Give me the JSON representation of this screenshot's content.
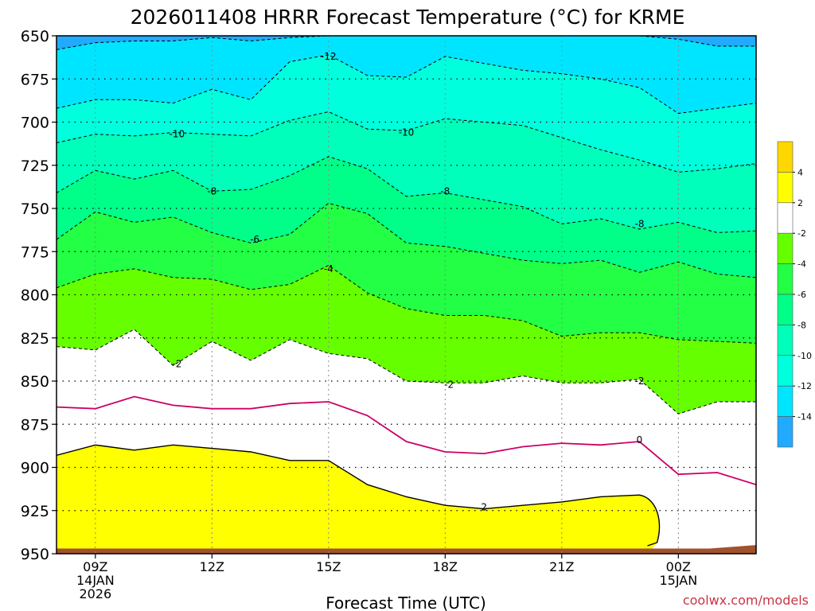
{
  "chart_data": {
    "type": "heatmap",
    "title": "2026011408 HRRR Forecast Temperature (°C) for KRME",
    "xlabel": "Forecast Time (UTC)",
    "credit": "coolwx.com/models",
    "y_ticks": [
      "650",
      "675",
      "700",
      "725",
      "750",
      "775",
      "800",
      "825",
      "850",
      "875",
      "900",
      "925",
      "950"
    ],
    "y_values": [
      650,
      675,
      700,
      725,
      750,
      775,
      800,
      825,
      850,
      875,
      900,
      925,
      950
    ],
    "ylim": [
      650,
      950
    ],
    "y_inverted": true,
    "x_ticks": [
      {
        "hour": 9,
        "lines": [
          "09Z",
          "14JAN",
          "2026"
        ]
      },
      {
        "hour": 12,
        "lines": [
          "12Z"
        ]
      },
      {
        "hour": 15,
        "lines": [
          "15Z"
        ]
      },
      {
        "hour": 18,
        "lines": [
          "18Z"
        ]
      },
      {
        "hour": 21,
        "lines": [
          "21Z"
        ]
      },
      {
        "hour": 24,
        "lines": [
          "00Z",
          "15JAN"
        ]
      }
    ],
    "xlim": [
      8,
      26
    ],
    "grid": true,
    "colorbar": {
      "labels": [
        "4",
        "2",
        "-2",
        "-4",
        "-6",
        "-8",
        "-10",
        "-12",
        "-14"
      ],
      "colors": [
        "#ffd700",
        "#ffff00",
        "#ffffff",
        "#66ff00",
        "#22ff44",
        "#00ff88",
        "#00ffbb",
        "#00ffdd",
        "#00e5ff",
        "#22aaff"
      ]
    },
    "band_colors": {
      "lt_-14": "#22aaff",
      "-14_-12": "#00e5ff",
      "-12_-10": "#00ffdd",
      "-10_-8": "#00ffbb",
      "-8_-6": "#00ff88",
      "-6_-4": "#22ff44",
      "-4_-2": "#66ff00",
      "-2_2": "#ffffff",
      "2_4": "#ffff00",
      "ground": "#a0522d",
      "zero_line": "#cc0066"
    },
    "forecast_hours": [
      8,
      9,
      10,
      11,
      12,
      13,
      14,
      15,
      16,
      17,
      18,
      19,
      20,
      21,
      22,
      23,
      24,
      25,
      26
    ],
    "contours": [
      {
        "level": -14,
        "pressures": [
          658,
          654,
          653,
          653,
          651,
          653,
          651,
          650,
          650,
          650,
          650,
          650,
          650,
          650,
          650,
          650,
          652,
          656,
          656
        ]
      },
      {
        "level": -12,
        "pressures": [
          692,
          687,
          687,
          689,
          681,
          687,
          665,
          661,
          673,
          674,
          662,
          666,
          670,
          672,
          675,
          680,
          695,
          692,
          689
        ]
      },
      {
        "level": -10,
        "pressures": [
          712,
          707,
          708,
          706,
          707,
          708,
          699,
          694,
          704,
          705,
          698,
          700,
          702,
          709,
          716,
          722,
          729,
          727,
          724
        ]
      },
      {
        "level": -8,
        "pressures": [
          741,
          728,
          733,
          728,
          740,
          739,
          731,
          720,
          727,
          743,
          741,
          745,
          749,
          759,
          756,
          762,
          758,
          764,
          763
        ]
      },
      {
        "level": -6,
        "pressures": [
          768,
          752,
          758,
          755,
          764,
          770,
          765,
          747,
          753,
          770,
          772,
          776,
          780,
          782,
          780,
          787,
          781,
          788,
          790
        ]
      },
      {
        "level": -4,
        "pressures": [
          796,
          788,
          785,
          790,
          791,
          797,
          794,
          783,
          799,
          808,
          812,
          812,
          815,
          824,
          822,
          822,
          826,
          827,
          828
        ]
      },
      {
        "level": -2,
        "pressures": [
          830,
          832,
          820,
          841,
          827,
          838,
          826,
          834,
          837,
          850,
          851,
          851,
          847,
          851,
          851,
          849,
          869,
          862,
          862
        ]
      },
      {
        "level": 0,
        "pressures": [
          865,
          866,
          859,
          864,
          866,
          866,
          863,
          862,
          870,
          885,
          891,
          892,
          888,
          886,
          887,
          885,
          904,
          903,
          910
        ]
      },
      {
        "level": 2,
        "pressures": [
          893,
          887,
          890,
          887,
          889,
          891,
          896,
          896,
          910,
          917,
          922,
          924,
          922,
          920,
          917,
          916
        ]
      }
    ],
    "contour_labels": [
      {
        "text": "-12",
        "hour": 15.0,
        "p": 662
      },
      {
        "text": "-10",
        "hour": 11.1,
        "p": 707
      },
      {
        "text": "-10",
        "hour": 17.0,
        "p": 706
      },
      {
        "text": "-8",
        "hour": 12.0,
        "p": 740
      },
      {
        "text": "-8",
        "hour": 18.0,
        "p": 740
      },
      {
        "text": "-8",
        "hour": 23.0,
        "p": 759
      },
      {
        "text": "-6",
        "hour": 13.1,
        "p": 768
      },
      {
        "text": "-4",
        "hour": 15.0,
        "p": 785
      },
      {
        "text": "-2",
        "hour": 11.1,
        "p": 840
      },
      {
        "text": "-2",
        "hour": 18.1,
        "p": 852
      },
      {
        "text": "-2",
        "hour": 23.0,
        "p": 850
      },
      {
        "text": "0",
        "hour": 23.0,
        "p": 884
      },
      {
        "text": "2",
        "hour": 19.0,
        "p": 923
      }
    ]
  }
}
